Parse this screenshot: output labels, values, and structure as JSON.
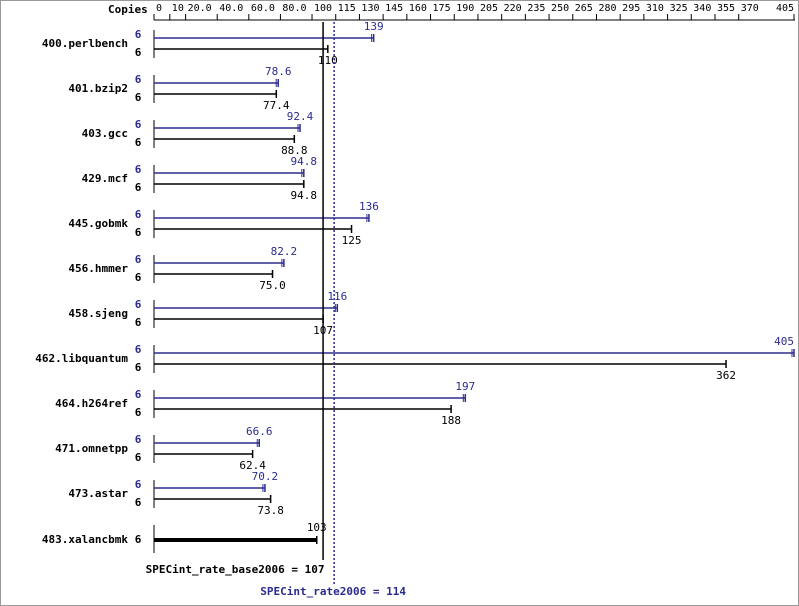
{
  "chart_data": {
    "type": "bar",
    "copies_label": "Copies",
    "categories": [
      "400.perlbench",
      "401.bzip2",
      "403.gcc",
      "429.mcf",
      "445.gobmk",
      "456.hmmer",
      "458.sjeng",
      "462.libquantum",
      "464.h264ref",
      "471.omnetpp",
      "473.astar",
      "483.xalancbmk"
    ],
    "series": [
      {
        "color": "#2b2b8f",
        "copies": [
          6,
          6,
          6,
          6,
          6,
          6,
          6,
          6,
          6,
          6,
          6,
          null
        ],
        "values": [
          139,
          78.6,
          92.4,
          94.8,
          136,
          82.2,
          116,
          405,
          197,
          66.6,
          70.2,
          null
        ]
      },
      {
        "color": "#000000",
        "copies": [
          6,
          6,
          6,
          6,
          6,
          6,
          6,
          6,
          6,
          6,
          6,
          6
        ],
        "values": [
          110,
          77.4,
          88.8,
          94.8,
          125,
          75,
          107,
          362,
          188,
          62.4,
          73.8,
          103
        ],
        "value_labels": [
          "110",
          "77.4",
          "88.8",
          "94.8",
          "125",
          "75.0",
          "107",
          "362",
          "188",
          "62.4",
          "73.8",
          "103"
        ]
      }
    ],
    "xlim": [
      0,
      405
    ],
    "xticks": [
      0,
      10,
      {
        "value": 20,
        "label": "20.0"
      },
      {
        "value": 40,
        "label": "40.0"
      },
      {
        "value": 60,
        "label": "60.0"
      },
      {
        "value": 80,
        "label": "80.0"
      },
      100,
      115,
      130,
      145,
      160,
      175,
      190,
      205,
      220,
      235,
      250,
      265,
      280,
      295,
      310,
      325,
      340,
      355,
      370,
      405
    ],
    "reference_lines": [
      {
        "label": "SPECint_rate_base2006 = 107",
        "value": 107,
        "color": "#000000",
        "dotted": false
      },
      {
        "label": "SPECint_rate2006 = 114",
        "value": 114,
        "color": "#2b2b8f",
        "dotted": true
      }
    ]
  }
}
